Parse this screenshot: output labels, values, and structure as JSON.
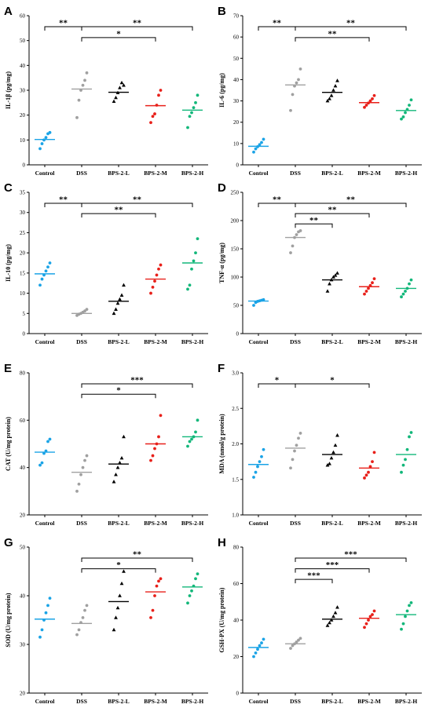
{
  "colors": {
    "Control": "#1aa3e6",
    "DSS": "#a0a0a0",
    "BPS-2-L": "#000000",
    "BPS-2-M": "#e8201a",
    "BPS-2-H": "#12b77a"
  },
  "chart_data": [
    {
      "type": "scatter",
      "panel": "A",
      "ylabel": "IL-1β (pg/mg)",
      "ylim": [
        0,
        60
      ],
      "yticks": [
        0,
        10,
        20,
        30,
        40,
        50,
        60
      ],
      "categories": [
        "Control",
        "DSS",
        "BPS-2-L",
        "BPS-2-M",
        "BPS-2-H"
      ],
      "points": [
        [
          6.5,
          8.5,
          10,
          11,
          12.5,
          13
        ],
        [
          19,
          26,
          30,
          32,
          34,
          37
        ],
        [
          25.5,
          27,
          29,
          31,
          33,
          32
        ],
        [
          17,
          19.5,
          20.5,
          24,
          28,
          30
        ],
        [
          15,
          19.5,
          21,
          23,
          25,
          28
        ]
      ],
      "means": [
        10.2,
        30.5,
        29.2,
        23.8,
        22
      ],
      "significance": [
        {
          "from": 0,
          "to": 1,
          "label": "**"
        },
        {
          "from": 1,
          "to": 3,
          "label": "*"
        },
        {
          "from": 1,
          "to": 4,
          "label": "**"
        }
      ]
    },
    {
      "type": "scatter",
      "panel": "B",
      "ylabel": "IL-6 (pg/mg)",
      "ylim": [
        0,
        70
      ],
      "yticks": [
        0,
        10,
        20,
        30,
        40,
        50,
        60,
        70
      ],
      "categories": [
        "Control",
        "DSS",
        "BPS-2-L",
        "BPS-2-M",
        "BPS-2-H"
      ],
      "points": [
        [
          6,
          7.5,
          8.5,
          9.5,
          10.5,
          12
        ],
        [
          25.5,
          33,
          37,
          38.5,
          40,
          45
        ],
        [
          30,
          31,
          32.5,
          35,
          37,
          39.5
        ],
        [
          27,
          28,
          29,
          30,
          31,
          32.5
        ],
        [
          21.5,
          22.5,
          24.5,
          26,
          28,
          30.5
        ]
      ],
      "means": [
        8.7,
        37.5,
        34,
        29.2,
        25.5
      ],
      "significance": [
        {
          "from": 0,
          "to": 1,
          "label": "**"
        },
        {
          "from": 1,
          "to": 3,
          "label": "**"
        },
        {
          "from": 1,
          "to": 4,
          "label": "**"
        }
      ]
    },
    {
      "type": "scatter",
      "panel": "C",
      "ylabel": "IL-10 (pg/mg)",
      "ylim": [
        0,
        35
      ],
      "yticks": [
        0,
        5,
        10,
        15,
        20,
        25,
        30,
        35
      ],
      "categories": [
        "Control",
        "DSS",
        "BPS-2-L",
        "BPS-2-M",
        "BPS-2-H"
      ],
      "points": [
        [
          12,
          13.5,
          14.5,
          15.5,
          16.5,
          17.5
        ],
        [
          4.5,
          4.8,
          5,
          5.3,
          5.6,
          6
        ],
        [
          5,
          6,
          7.5,
          8.5,
          9.5,
          12
        ],
        [
          10,
          11.5,
          13,
          14.5,
          16,
          17
        ],
        [
          11,
          12,
          16,
          18,
          20,
          23.5
        ]
      ],
      "means": [
        14.8,
        5,
        8,
        13.5,
        17.5
      ],
      "significance": [
        {
          "from": 0,
          "to": 1,
          "label": "**"
        },
        {
          "from": 1,
          "to": 3,
          "label": "**"
        },
        {
          "from": 1,
          "to": 4,
          "label": "**"
        }
      ]
    },
    {
      "type": "scatter",
      "panel": "D",
      "ylabel": "TNF-α (pg/mg)",
      "ylim": [
        0,
        250
      ],
      "yticks": [
        0,
        50,
        100,
        150,
        200,
        250
      ],
      "categories": [
        "Control",
        "DSS",
        "BPS-2-L",
        "BPS-2-M",
        "BPS-2-H"
      ],
      "points": [
        [
          50,
          55,
          57,
          58,
          59,
          60
        ],
        [
          143,
          155,
          170,
          175,
          180,
          182
        ],
        [
          75,
          88,
          95,
          100,
          103,
          107
        ],
        [
          70,
          75,
          80,
          85,
          90,
          97
        ],
        [
          65,
          70,
          75,
          80,
          88,
          95
        ]
      ],
      "means": [
        57.5,
        170,
        95,
        83,
        80
      ],
      "significance": [
        {
          "from": 0,
          "to": 1,
          "label": "**"
        },
        {
          "from": 1,
          "to": 2,
          "label": "**"
        },
        {
          "from": 1,
          "to": 3,
          "label": "**"
        },
        {
          "from": 1,
          "to": 4,
          "label": "**"
        }
      ]
    },
    {
      "type": "scatter",
      "panel": "E",
      "ylabel": "CAT (U/mg protein)",
      "ylim": [
        20,
        80
      ],
      "yticks": [
        20,
        40,
        60,
        80
      ],
      "categories": [
        "Control",
        "DSS",
        "BPS-2-L",
        "BPS-2-M",
        "BPS-2-H"
      ],
      "points": [
        [
          41,
          42,
          46,
          47,
          51,
          52
        ],
        [
          30,
          33,
          37,
          40,
          43,
          45
        ],
        [
          34,
          37,
          40,
          42,
          44,
          53
        ],
        [
          43,
          45,
          48,
          50,
          53,
          62
        ],
        [
          49,
          51,
          52,
          53,
          55,
          60
        ]
      ],
      "means": [
        46.5,
        38,
        41.5,
        50,
        53
      ],
      "significance": [
        {
          "from": 1,
          "to": 3,
          "label": "*"
        },
        {
          "from": 1,
          "to": 4,
          "label": "***"
        }
      ]
    },
    {
      "type": "scatter",
      "panel": "F",
      "ylabel": "MDA (nmol/g protein)",
      "ylim": [
        1.0,
        3.0
      ],
      "yticks": [
        1.0,
        1.5,
        2.0,
        2.5,
        3.0
      ],
      "categories": [
        "Control",
        "DSS",
        "BPS-2-L",
        "BPS-2-M",
        "BPS-2-H"
      ],
      "points": [
        [
          1.53,
          1.6,
          1.68,
          1.75,
          1.82,
          1.92
        ],
        [
          1.66,
          1.78,
          1.9,
          1.98,
          2.08,
          2.15
        ],
        [
          1.7,
          1.72,
          1.8,
          1.88,
          1.98,
          2.12
        ],
        [
          1.52,
          1.56,
          1.6,
          1.68,
          1.75,
          1.88
        ],
        [
          1.6,
          1.7,
          1.78,
          1.92,
          2.1,
          2.16
        ]
      ],
      "means": [
        1.71,
        1.94,
        1.85,
        1.66,
        1.85
      ],
      "significance": [
        {
          "from": 0,
          "to": 1,
          "label": "*"
        },
        {
          "from": 1,
          "to": 3,
          "label": "*"
        }
      ]
    },
    {
      "type": "scatter",
      "panel": "G",
      "ylabel": "SOD (U/mg protein)",
      "ylim": [
        20,
        50
      ],
      "yticks": [
        20,
        30,
        40,
        50
      ],
      "categories": [
        "Control",
        "DSS",
        "BPS-2-L",
        "BPS-2-M",
        "BPS-2-H"
      ],
      "points": [
        [
          31.5,
          33,
          35,
          36.5,
          38,
          39.5
        ],
        [
          32,
          33,
          34.5,
          35.5,
          37,
          38
        ],
        [
          33,
          35.5,
          37.5,
          40,
          42.5,
          45
        ],
        [
          35.5,
          37,
          40,
          42,
          43,
          43.5
        ],
        [
          38.5,
          40,
          41,
          42,
          43.5,
          44.5
        ]
      ],
      "means": [
        35.2,
        34.3,
        38.8,
        40.8,
        41.8
      ],
      "significance": [
        {
          "from": 1,
          "to": 3,
          "label": "*"
        },
        {
          "from": 1,
          "to": 4,
          "label": "**"
        }
      ]
    },
    {
      "type": "scatter",
      "panel": "H",
      "ylabel": "GSH-PX (U/mg protein)",
      "ylim": [
        0,
        80
      ],
      "yticks": [
        0,
        20,
        40,
        60,
        80
      ],
      "categories": [
        "Control",
        "DSS",
        "BPS-2-L",
        "BPS-2-M",
        "BPS-2-H"
      ],
      "points": [
        [
          20,
          22,
          24,
          26,
          27.5,
          29.5
        ],
        [
          24.5,
          26,
          27,
          28,
          29,
          30
        ],
        [
          37,
          38.5,
          40,
          42,
          44,
          47
        ],
        [
          36,
          38,
          40,
          42,
          43,
          45
        ],
        [
          35,
          38,
          42,
          45,
          48,
          49.5
        ]
      ],
      "means": [
        25,
        27,
        40.5,
        41,
        43
      ],
      "significance": [
        {
          "from": 1,
          "to": 2,
          "label": "***"
        },
        {
          "from": 1,
          "to": 3,
          "label": "***"
        },
        {
          "from": 1,
          "to": 4,
          "label": "***"
        }
      ]
    }
  ]
}
